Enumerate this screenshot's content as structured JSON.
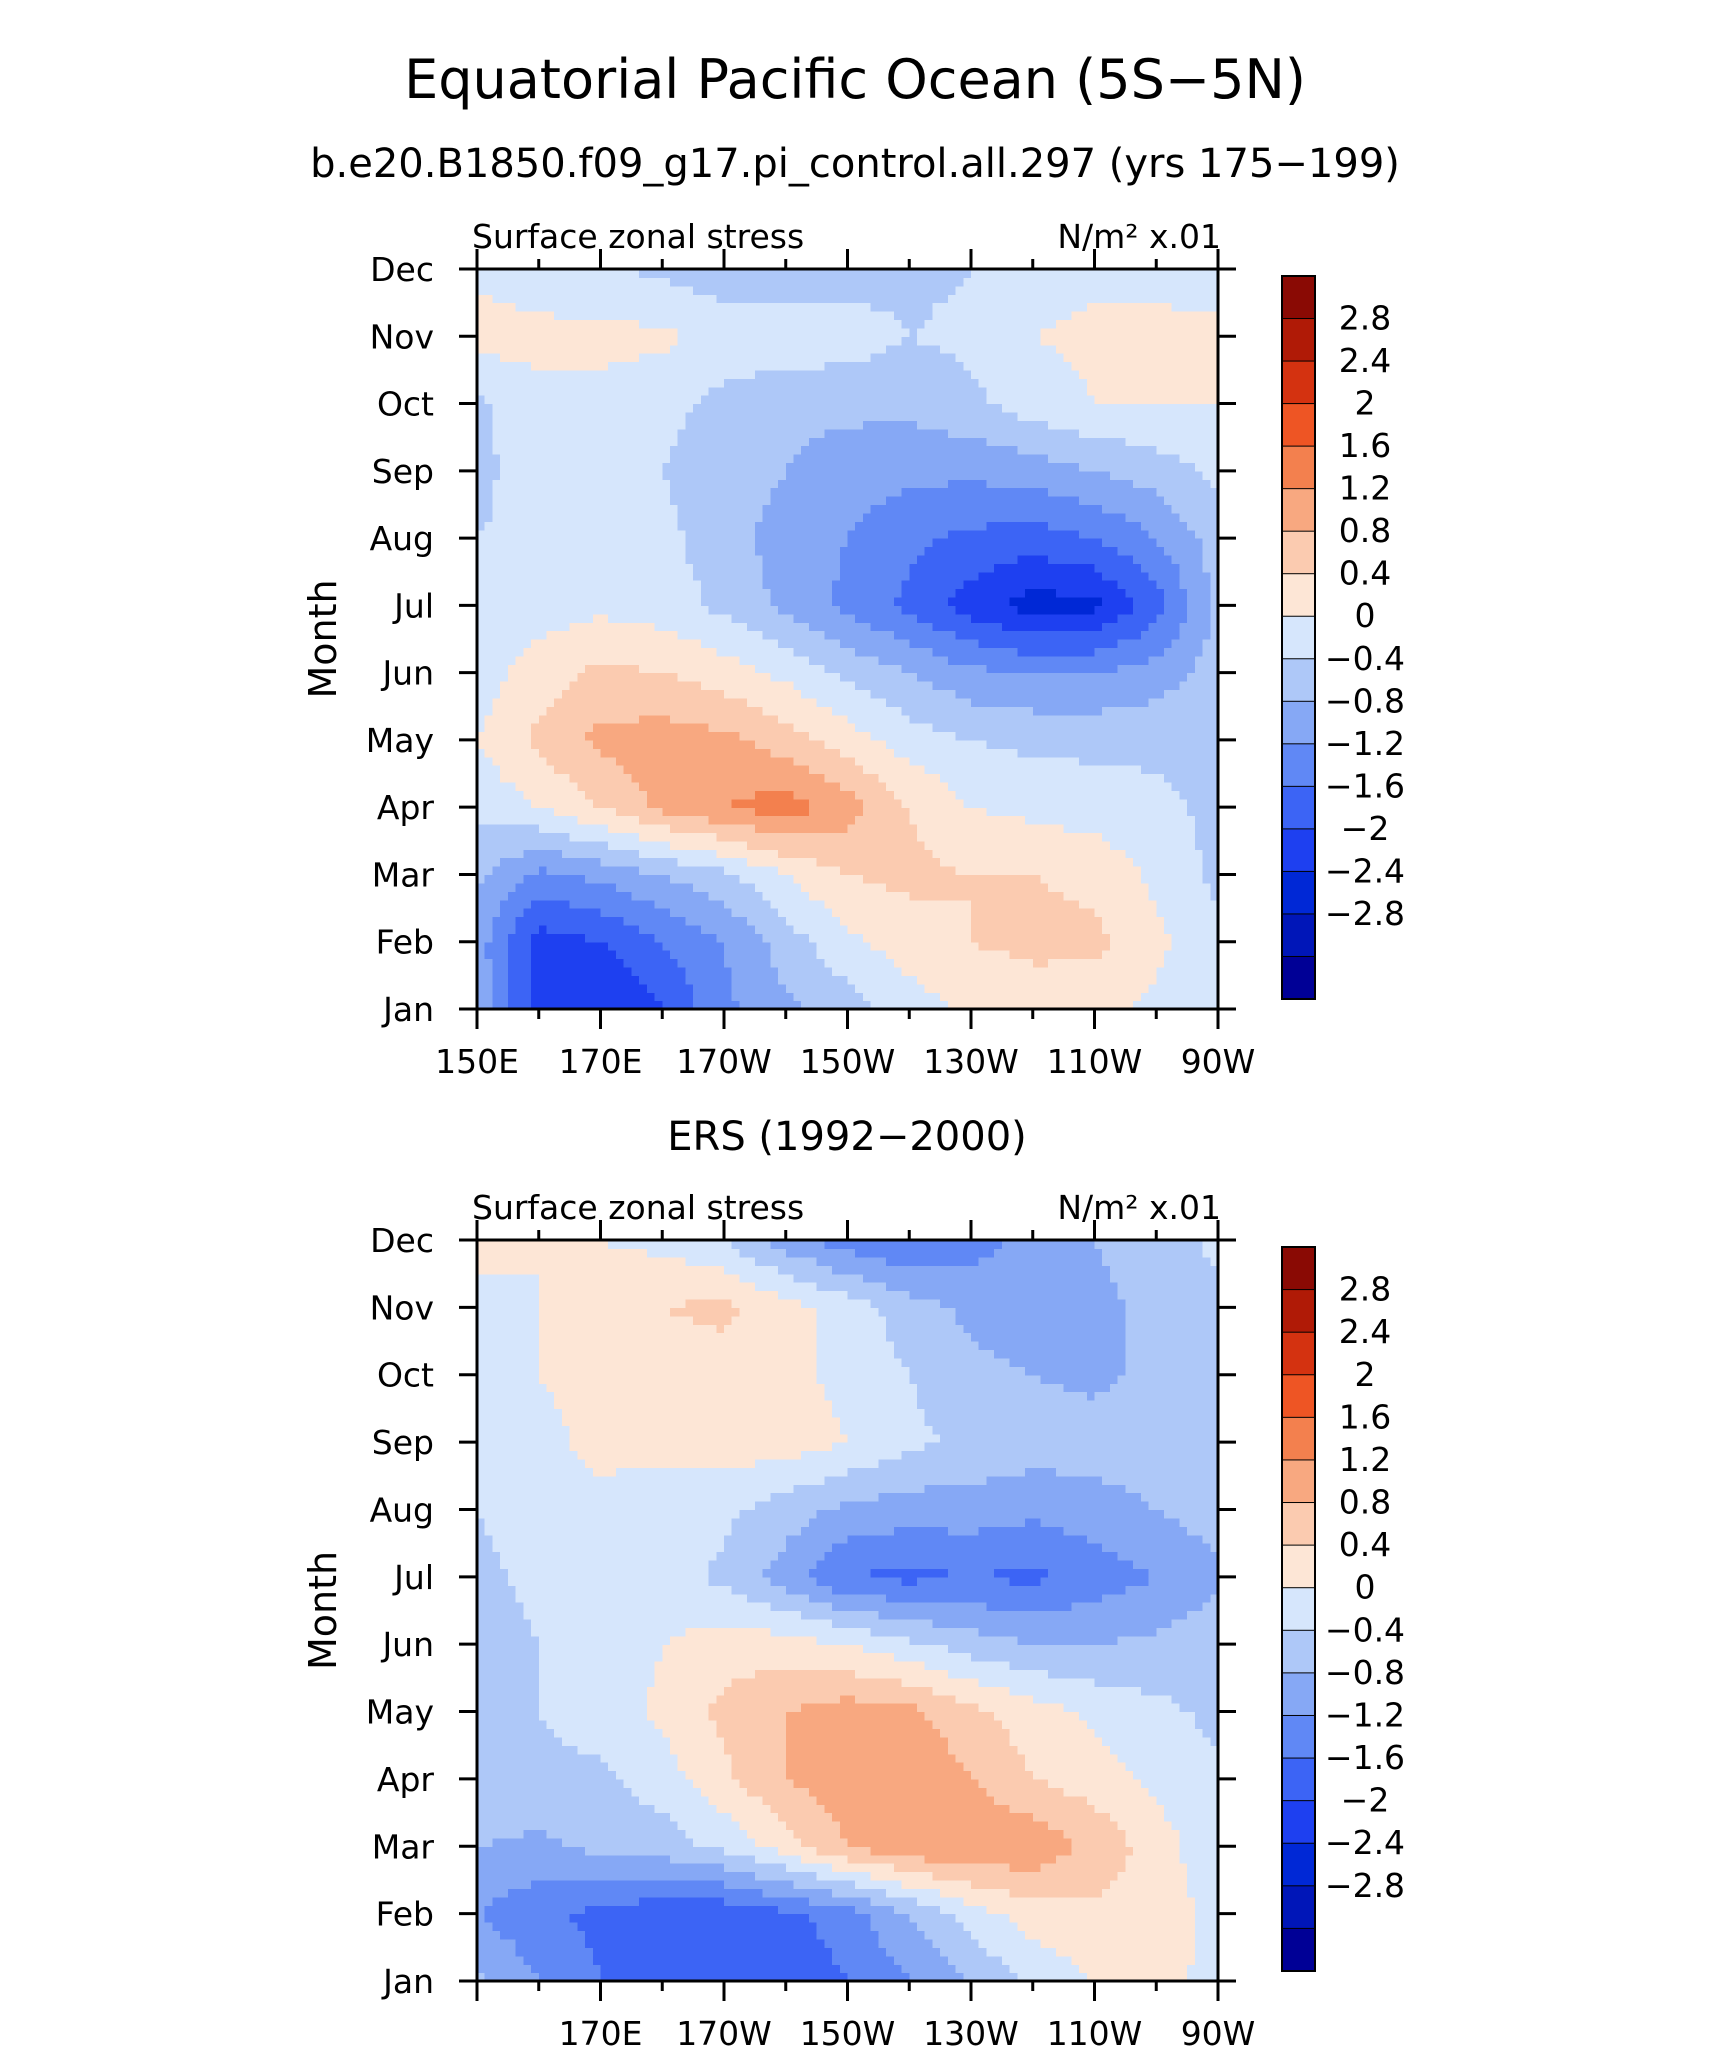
{
  "title": "Equatorial Pacific Ocean (5S−5N)",
  "subtitle": "b.e20.B1850.f09_g17.pi_control.all.297 (yrs 175−199)",
  "colorbar_colors": [
    "#000096",
    "#0016B8",
    "#0028D6",
    "#1E40F0",
    "#3C64F5",
    "#6088F5",
    "#86A8F5",
    "#AEC8F8",
    "#D6E6FC",
    "#FDE6D6",
    "#FBCBB0",
    "#F8A880",
    "#F3804E",
    "#EE5524",
    "#D43210",
    "#B01A06",
    "#8A0A04"
  ],
  "colorbar_labels": [
    "2.8",
    "2.4",
    "2",
    "1.6",
    "1.2",
    "0.8",
    "0.4",
    "0",
    "−0.4",
    "−0.8",
    "−1.2",
    "−1.6",
    "−2",
    "−2.4",
    "−2.8"
  ],
  "chart_data": [
    {
      "type": "heatmap",
      "name": "model",
      "label_left": "Surface zonal stress",
      "label_right": "N/m² x.01",
      "ylabel": "Month",
      "y_ticks": [
        "Jan",
        "Feb",
        "Mar",
        "Apr",
        "May",
        "Jun",
        "Jul",
        "Aug",
        "Sep",
        "Oct",
        "Nov",
        "Dec"
      ],
      "x_tick_labels": [
        "150E",
        "170E",
        "170W",
        "150W",
        "130W",
        "110W",
        "90W"
      ],
      "x_range_deg_east": [
        150,
        270
      ],
      "y_range_month": [
        1,
        12
      ],
      "levels": [
        -2.8,
        -2.4,
        -2,
        -1.6,
        -1.2,
        -0.8,
        -0.4,
        0,
        0.4,
        0.8,
        1.2,
        1.6,
        2,
        2.4,
        2.8
      ],
      "lon_deg_east": [
        150,
        160,
        170,
        180,
        190,
        200,
        210,
        220,
        230,
        240,
        250,
        260,
        270
      ],
      "values": [
        [
          -0.5,
          -1.8,
          -2.0,
          -1.6,
          -0.9,
          -0.5,
          -0.2,
          0.2,
          0.5,
          0.6,
          0.5,
          0.3,
          0.1
        ],
        [
          -0.6,
          -1.8,
          -1.6,
          -1.2,
          -0.8,
          -0.2,
          0.3,
          0.6,
          0.8,
          0.9,
          0.9,
          0.5,
          0.1
        ],
        [
          -0.3,
          -0.9,
          -0.7,
          -0.4,
          -0.1,
          0.4,
          0.8,
          0.9,
          0.8,
          0.8,
          0.7,
          0.3,
          -0.1
        ],
        [
          0.1,
          0.4,
          0.8,
          1.3,
          1.6,
          1.8,
          1.4,
          0.8,
          0.4,
          0.3,
          0.2,
          0.1,
          -0.1
        ],
        [
          0.4,
          0.9,
          1.3,
          1.4,
          1.3,
          1.0,
          0.6,
          0.2,
          0.0,
          -0.1,
          -0.1,
          -0.1,
          -0.1
        ],
        [
          0.2,
          0.6,
          0.9,
          0.8,
          0.6,
          0.3,
          -0.1,
          -0.4,
          -0.7,
          -0.8,
          -0.8,
          -0.6,
          -0.2
        ],
        [
          0.0,
          0.2,
          0.3,
          0.2,
          -0.1,
          -0.5,
          -0.9,
          -1.3,
          -1.8,
          -2.2,
          -2.1,
          -1.4,
          -0.3
        ],
        [
          0.0,
          0.1,
          0.1,
          0.1,
          -0.2,
          -0.6,
          -0.8,
          -1.1,
          -1.3,
          -1.4,
          -1.2,
          -0.8,
          -0.2
        ],
        [
          -0.1,
          0.2,
          0.1,
          0.0,
          -0.2,
          -0.4,
          -0.6,
          -0.7,
          -0.7,
          -0.6,
          -0.4,
          -0.2,
          0.1
        ],
        [
          -0.1,
          0.3,
          0.3,
          0.1,
          -0.1,
          -0.3,
          -0.3,
          -0.3,
          -0.1,
          0.2,
          0.4,
          0.4,
          0.4
        ],
        [
          0.6,
          0.5,
          0.5,
          0.5,
          0.2,
          0.3,
          0.2,
          0.0,
          0.1,
          0.4,
          0.5,
          0.5,
          0.5
        ],
        [
          0.3,
          0.2,
          0.1,
          -0.1,
          -0.2,
          -0.3,
          -0.2,
          -0.1,
          0.0,
          0.2,
          0.3,
          0.3,
          0.2
        ]
      ]
    },
    {
      "type": "heatmap",
      "name": "ers",
      "title": "ERS (1992−2000)",
      "label_left": "Surface zonal stress",
      "label_right": "N/m² x.01",
      "ylabel": "Month",
      "y_ticks": [
        "Jan",
        "Feb",
        "Mar",
        "Apr",
        "May",
        "Jun",
        "Jul",
        "Aug",
        "Sep",
        "Oct",
        "Nov",
        "Dec"
      ],
      "x_tick_labels": [
        "170E",
        "170W",
        "150W",
        "130W",
        "110W",
        "90W"
      ],
      "x_range_deg_east": [
        150,
        270
      ],
      "y_range_month": [
        1,
        12
      ],
      "levels": [
        -2.8,
        -2.4,
        -2,
        -1.6,
        -1.2,
        -0.8,
        -0.4,
        0,
        0.4,
        0.8,
        1.2,
        1.6,
        2,
        2.4,
        2.8
      ],
      "lon_deg_east": [
        150,
        160,
        170,
        180,
        190,
        200,
        210,
        220,
        230,
        240,
        250,
        260,
        270
      ],
      "values": [
        [
          -0.3,
          -0.8,
          -1.2,
          -1.4,
          -1.6,
          -1.5,
          -1.2,
          -0.8,
          -0.4,
          0.1,
          0.4,
          0.5,
          0.3
        ],
        [
          -0.8,
          -1.1,
          -1.3,
          -1.5,
          -1.5,
          -1.3,
          -1.0,
          -0.4,
          0.2,
          0.6,
          0.7,
          0.6,
          0.3
        ],
        [
          -0.4,
          -0.5,
          -0.3,
          -0.2,
          0.1,
          0.6,
          1.2,
          1.5,
          1.6,
          1.5,
          1.1,
          0.6,
          0.1
        ],
        [
          -0.1,
          -0.1,
          -0.1,
          0.2,
          0.7,
          1.2,
          1.5,
          1.6,
          1.2,
          0.8,
          0.6,
          0.3,
          0.1
        ],
        [
          0.0,
          0.0,
          0.2,
          0.5,
          0.9,
          1.2,
          1.4,
          1.3,
          0.9,
          0.6,
          0.3,
          0.1,
          -0.1
        ],
        [
          -0.2,
          0.0,
          0.1,
          0.4,
          0.6,
          0.6,
          0.4,
          0.1,
          -0.2,
          -0.4,
          -0.4,
          -0.3,
          -0.1
        ],
        [
          -0.1,
          0.1,
          0.2,
          0.2,
          -0.1,
          -0.6,
          -1.2,
          -1.3,
          -1.2,
          -1.3,
          -1.0,
          -0.8,
          -0.5
        ],
        [
          0.0,
          0.2,
          0.3,
          0.2,
          0.1,
          -0.2,
          -0.5,
          -0.6,
          -0.6,
          -0.7,
          -0.6,
          -0.4,
          -0.2
        ],
        [
          0.1,
          0.3,
          0.5,
          0.5,
          0.6,
          0.6,
          0.4,
          0.1,
          -0.1,
          -0.2,
          -0.2,
          -0.1,
          0.0
        ],
        [
          0.2,
          0.4,
          0.5,
          0.6,
          0.6,
          0.5,
          0.3,
          0.0,
          -0.3,
          -0.4,
          -0.5,
          -0.3,
          -0.1
        ],
        [
          0.3,
          0.4,
          0.5,
          0.8,
          0.9,
          0.6,
          0.2,
          -0.2,
          -0.5,
          -0.6,
          -0.5,
          -0.3,
          -0.1
        ],
        [
          0.5,
          0.4,
          0.4,
          0.3,
          0.0,
          -0.6,
          -1.0,
          -1.2,
          -1.0,
          -0.6,
          -0.4,
          -0.2,
          0.1
        ]
      ]
    }
  ]
}
